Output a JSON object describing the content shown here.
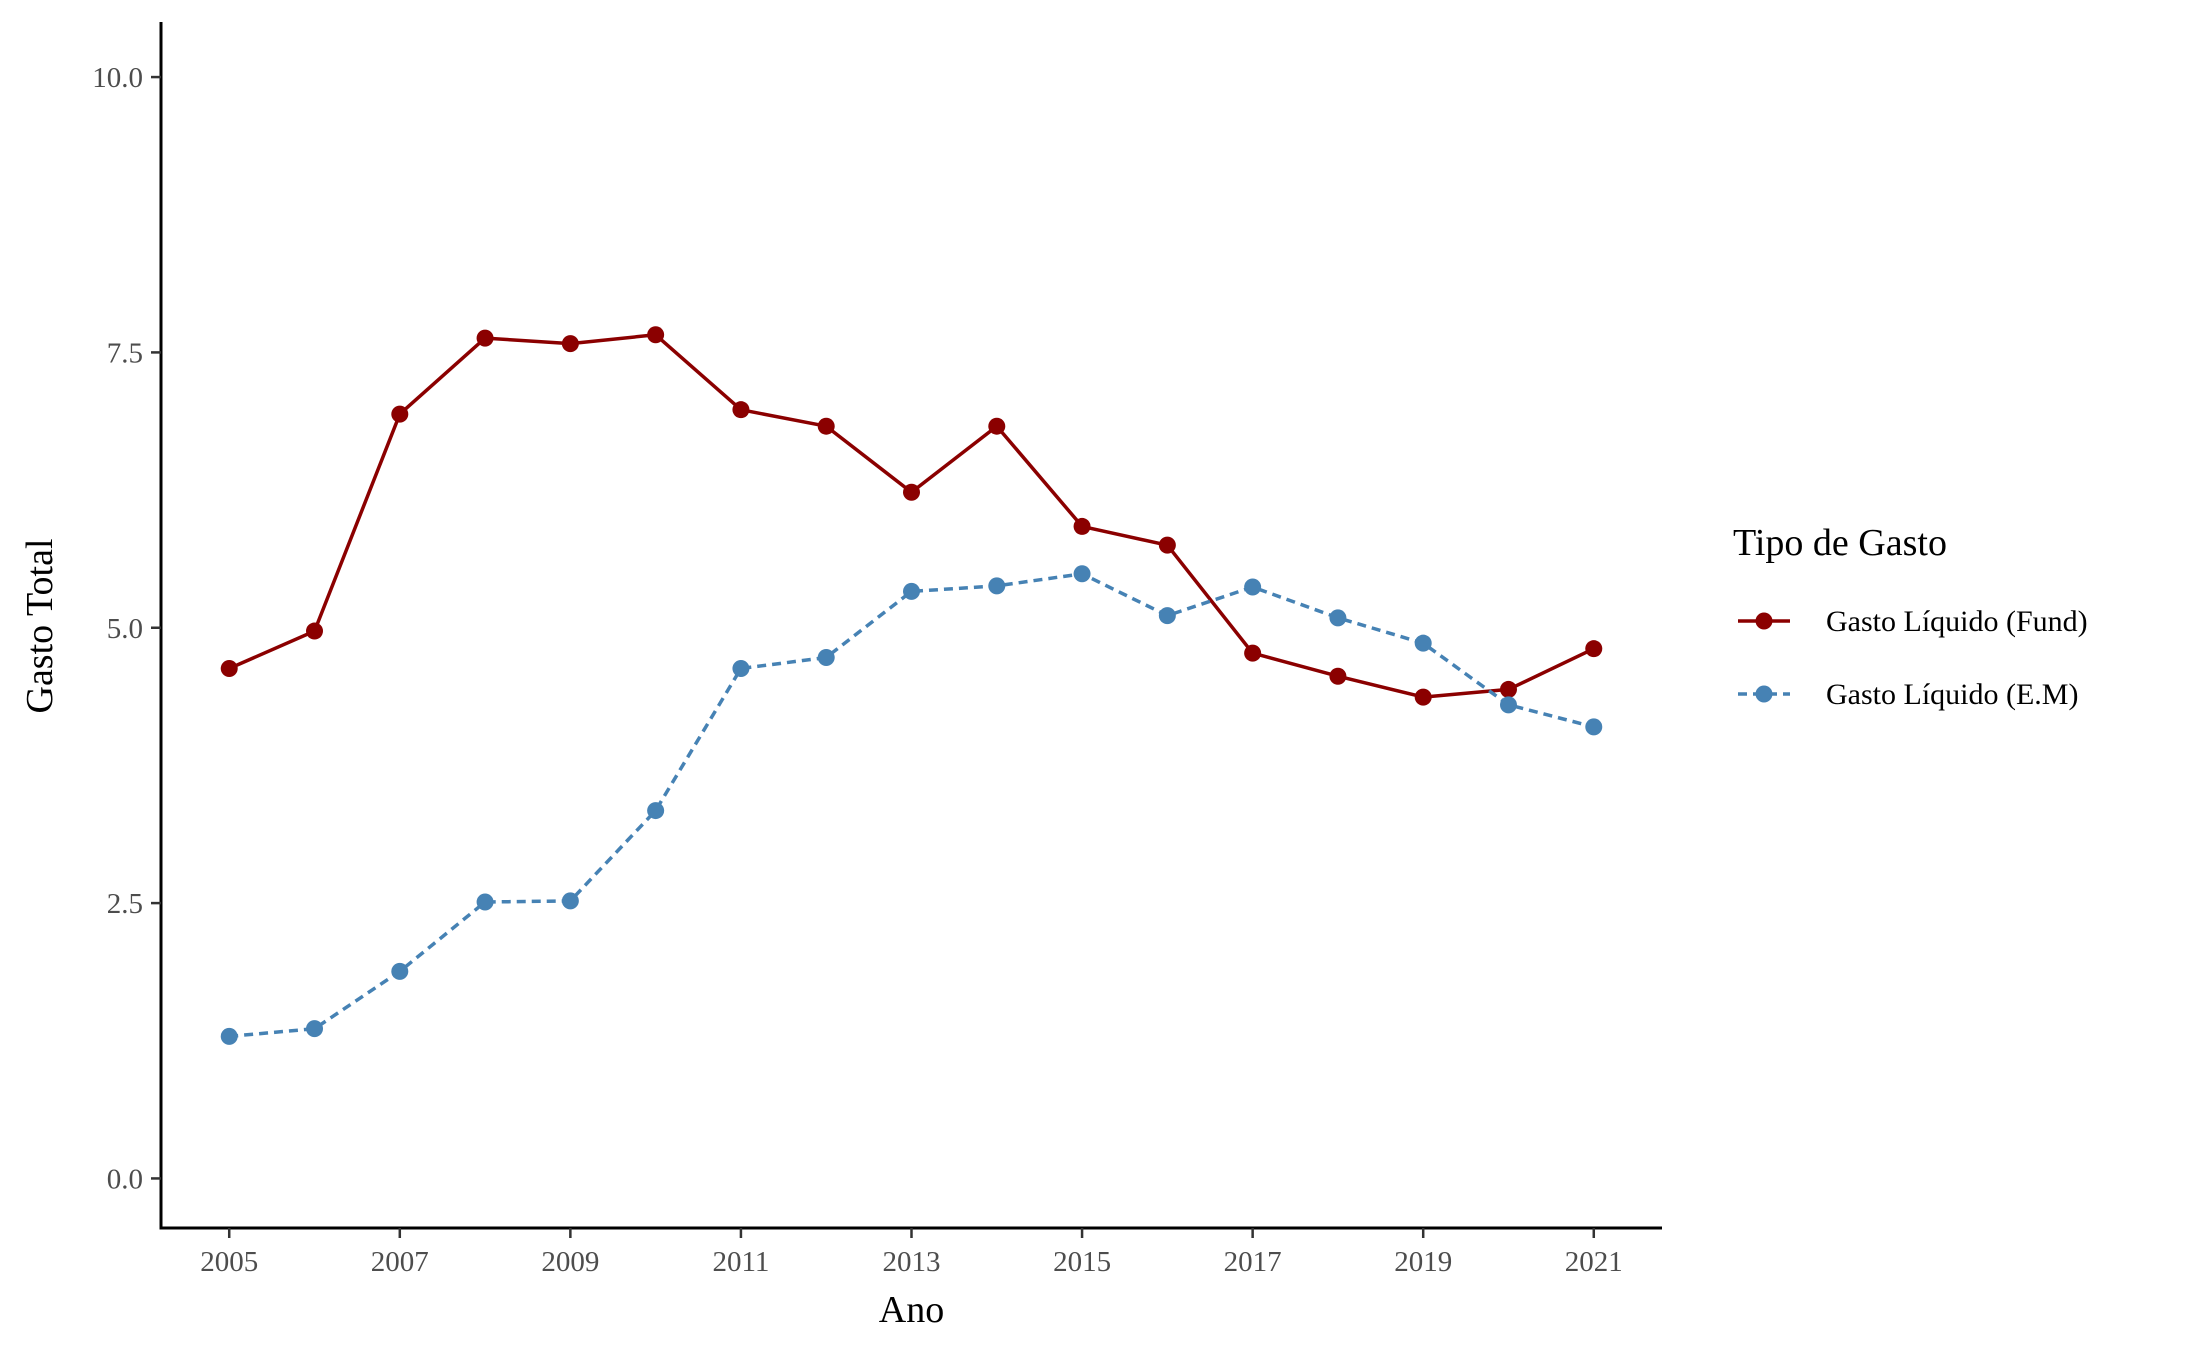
{
  "chart_data": {
    "type": "line",
    "title": "",
    "xlabel": "Ano",
    "ylabel": "Gasto Total",
    "x": [
      2005,
      2006,
      2007,
      2008,
      2009,
      2010,
      2011,
      2012,
      2013,
      2014,
      2015,
      2016,
      2017,
      2018,
      2019,
      2020,
      2021
    ],
    "x_ticks": [
      "2005",
      "2007",
      "2009",
      "2011",
      "2013",
      "2015",
      "2017",
      "2019",
      "2021"
    ],
    "y_ticks": [
      "0.0",
      "2.5",
      "5.0",
      "7.5",
      "10.0"
    ],
    "xlim": [
      2004.2,
      2021.8
    ],
    "ylim": [
      -0.45,
      10.5
    ],
    "grid": false,
    "legend_title": "Tipo de Gasto",
    "legend_position": "right",
    "series": [
      {
        "name": "Gasto Líquido (Fund)",
        "color": "#8B0000",
        "line_style": "solid",
        "values": [
          4.63,
          4.97,
          6.94,
          7.63,
          7.58,
          7.66,
          6.98,
          6.83,
          6.23,
          6.83,
          5.92,
          5.75,
          4.77,
          4.56,
          4.37,
          4.44,
          4.81
        ]
      },
      {
        "name": "Gasto Líquido (E.M)",
        "color": "#4682B4",
        "line_style": "dashed",
        "values": [
          1.29,
          1.36,
          1.88,
          2.51,
          2.52,
          3.34,
          4.63,
          4.73,
          5.33,
          5.38,
          5.49,
          5.11,
          5.37,
          5.09,
          4.86,
          4.3,
          4.1
        ]
      }
    ]
  }
}
